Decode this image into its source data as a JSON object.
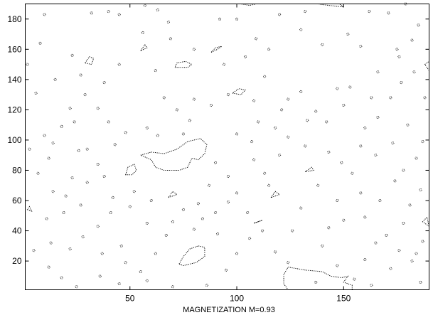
{
  "chart_data": {
    "type": "contour",
    "title": "",
    "xlabel": "MAGNETIZATION M=0.93",
    "ylabel": "",
    "xlim": [
      1,
      190
    ],
    "ylim": [
      1,
      190
    ],
    "x_ticks": [
      50,
      100,
      150
    ],
    "y_ticks": [
      20,
      40,
      60,
      80,
      100,
      120,
      140,
      160,
      180
    ],
    "grid": false,
    "legend": "none",
    "line_color": "#000000",
    "line_style": "dotted",
    "domains": [
      {
        "kind": "island",
        "points": [
          [
            55,
            90
          ],
          [
            60,
            92
          ],
          [
            66,
            91
          ],
          [
            72,
            94
          ],
          [
            77,
            99
          ],
          [
            83,
            101
          ],
          [
            86,
            97
          ],
          [
            85,
            91
          ],
          [
            82,
            87
          ],
          [
            79,
            88
          ],
          [
            77,
            82
          ],
          [
            73,
            80
          ],
          [
            66,
            80
          ],
          [
            62,
            82
          ],
          [
            60,
            87
          ]
        ]
      },
      {
        "kind": "island",
        "points": [
          [
            124,
            16
          ],
          [
            132,
            14
          ],
          [
            140,
            13
          ],
          [
            144,
            10
          ],
          [
            149,
            9
          ],
          [
            152,
            10
          ],
          [
            150,
            6
          ],
          [
            154,
            4
          ],
          [
            154,
            1
          ],
          [
            124,
            1
          ],
          [
            122,
            5
          ],
          [
            122,
            11
          ]
        ]
      },
      {
        "kind": "island",
        "points": [
          [
            73,
            18
          ],
          [
            75,
            23
          ],
          [
            78,
            28
          ],
          [
            82,
            30
          ],
          [
            85,
            29
          ],
          [
            85,
            23
          ],
          [
            81,
            19
          ],
          [
            75,
            17
          ]
        ]
      },
      {
        "kind": "island",
        "points": [
          [
            71,
            148
          ],
          [
            77,
            148
          ],
          [
            79,
            150
          ],
          [
            76,
            152
          ],
          [
            72,
            151
          ]
        ]
      },
      {
        "kind": "island",
        "points": [
          [
            48,
            77
          ],
          [
            49,
            82
          ],
          [
            52,
            84
          ],
          [
            53,
            80
          ],
          [
            51,
            77
          ]
        ]
      },
      {
        "kind": "island",
        "points": [
          [
            138,
            190
          ],
          [
            143,
            189
          ],
          [
            150,
            188
          ],
          [
            148,
            190
          ]
        ]
      },
      {
        "kind": "island",
        "points": [
          [
            102,
            190
          ],
          [
            106,
            189
          ],
          [
            109,
            190
          ]
        ]
      },
      {
        "kind": "island",
        "points": [
          [
            88,
            158
          ],
          [
            91,
            160
          ],
          [
            93,
            162
          ],
          [
            90,
            161
          ]
        ]
      },
      {
        "kind": "island",
        "points": [
          [
            98,
            131
          ],
          [
            102,
            130
          ],
          [
            104,
            133
          ],
          [
            101,
            134
          ]
        ]
      },
      {
        "kind": "island",
        "points": [
          [
            29,
            151
          ],
          [
            31,
            155
          ],
          [
            33,
            154
          ],
          [
            32,
            150
          ]
        ]
      },
      {
        "kind": "island",
        "points": [
          [
            55,
            159
          ],
          [
            57,
            163
          ],
          [
            58,
            161
          ]
        ]
      },
      {
        "kind": "island",
        "points": [
          [
            132,
            79
          ],
          [
            135,
            82
          ],
          [
            136,
            80
          ]
        ]
      },
      {
        "kind": "island",
        "points": [
          [
            68,
            62
          ],
          [
            72,
            64
          ],
          [
            70,
            66
          ]
        ]
      },
      {
        "kind": "island",
        "points": [
          [
            116,
            62
          ],
          [
            118,
            66
          ],
          [
            120,
            64
          ]
        ]
      },
      {
        "kind": "island",
        "points": [
          [
            108,
            45
          ],
          [
            110,
            46
          ],
          [
            112,
            47
          ]
        ]
      },
      {
        "kind": "island",
        "points": [
          [
            190,
            43
          ],
          [
            187,
            46
          ],
          [
            189,
            49
          ]
        ]
      },
      {
        "kind": "island",
        "points": [
          [
            190,
            146
          ],
          [
            188,
            150
          ],
          [
            190,
            152
          ]
        ]
      },
      {
        "kind": "island",
        "points": [
          [
            2,
            54
          ],
          [
            4,
            53
          ],
          [
            3,
            56
          ]
        ]
      }
    ],
    "spins": [
      [
        18,
        109
      ],
      [
        10,
        103
      ],
      [
        3,
        94
      ],
      [
        22,
        121
      ],
      [
        6,
        131
      ],
      [
        2,
        150
      ],
      [
        8,
        164
      ],
      [
        10,
        183
      ],
      [
        23,
        156
      ],
      [
        27,
        143
      ],
      [
        32,
        184
      ],
      [
        40,
        185
      ],
      [
        45,
        183
      ],
      [
        57,
        189
      ],
      [
        63,
        186
      ],
      [
        68,
        178
      ],
      [
        69,
        167
      ],
      [
        56,
        171
      ],
      [
        62,
        146
      ],
      [
        72,
        120
      ],
      [
        78,
        113
      ],
      [
        75,
        104
      ],
      [
        63,
        103
      ],
      [
        58,
        108
      ],
      [
        66,
        128
      ],
      [
        80,
        127
      ],
      [
        88,
        123
      ],
      [
        96,
        130
      ],
      [
        94,
        150
      ],
      [
        92,
        180
      ],
      [
        100,
        180
      ],
      [
        109,
        167
      ],
      [
        113,
        142
      ],
      [
        108,
        126
      ],
      [
        110,
        112
      ],
      [
        118,
        108
      ],
      [
        121,
        120
      ],
      [
        124,
        127
      ],
      [
        130,
        132
      ],
      [
        137,
        119
      ],
      [
        142,
        112
      ],
      [
        147,
        134
      ],
      [
        153,
        135
      ],
      [
        158,
        162
      ],
      [
        152,
        170
      ],
      [
        162,
        185
      ],
      [
        171,
        184
      ],
      [
        179,
        190
      ],
      [
        185,
        176
      ],
      [
        182,
        166
      ],
      [
        176,
        155
      ],
      [
        166,
        145
      ],
      [
        172,
        128
      ],
      [
        180,
        110
      ],
      [
        187,
        99
      ],
      [
        184,
        88
      ],
      [
        178,
        80
      ],
      [
        174,
        73
      ],
      [
        186,
        67
      ],
      [
        181,
        57
      ],
      [
        178,
        45
      ],
      [
        170,
        37
      ],
      [
        165,
        32
      ],
      [
        176,
        27
      ],
      [
        182,
        20
      ],
      [
        172,
        15
      ],
      [
        160,
        21
      ],
      [
        163,
        4
      ],
      [
        155,
        8
      ],
      [
        147,
        17
      ],
      [
        137,
        6
      ],
      [
        124,
        19
      ],
      [
        118,
        26
      ],
      [
        112,
        40
      ],
      [
        105,
        52
      ],
      [
        96,
        59
      ],
      [
        90,
        52
      ],
      [
        82,
        58
      ],
      [
        87,
        70
      ],
      [
        96,
        76
      ],
      [
        90,
        85
      ],
      [
        108,
        87
      ],
      [
        113,
        78
      ],
      [
        120,
        90
      ],
      [
        132,
        96
      ],
      [
        143,
        92
      ],
      [
        149,
        85
      ],
      [
        154,
        78
      ],
      [
        158,
        65
      ],
      [
        147,
        60
      ],
      [
        138,
        70
      ],
      [
        130,
        55
      ],
      [
        126,
        40
      ],
      [
        140,
        30
      ],
      [
        143,
        42
      ],
      [
        150,
        47
      ],
      [
        160,
        49
      ],
      [
        167,
        60
      ],
      [
        165,
        90
      ],
      [
        173,
        98
      ],
      [
        160,
        108
      ],
      [
        158,
        96
      ],
      [
        166,
        115
      ],
      [
        188,
        128
      ],
      [
        187,
        33
      ],
      [
        184,
        25
      ],
      [
        186,
        6
      ],
      [
        60,
        60
      ],
      [
        52,
        66
      ],
      [
        41,
        52
      ],
      [
        35,
        43
      ],
      [
        28,
        36
      ],
      [
        22,
        28
      ],
      [
        13,
        32
      ],
      [
        5,
        27
      ],
      [
        11,
        48
      ],
      [
        19,
        52
      ],
      [
        14,
        66
      ],
      [
        23,
        75
      ],
      [
        30,
        72
      ],
      [
        38,
        76
      ],
      [
        30,
        94
      ],
      [
        35,
        84
      ],
      [
        43,
        97
      ],
      [
        48,
        105
      ],
      [
        40,
        112
      ],
      [
        35,
        121
      ],
      [
        29,
        130
      ],
      [
        24,
        112
      ],
      [
        14,
        98
      ],
      [
        12,
        88
      ],
      [
        7,
        78
      ],
      [
        20,
        63
      ],
      [
        27,
        57
      ],
      [
        46,
        30
      ],
      [
        37,
        25
      ],
      [
        48,
        19
      ],
      [
        55,
        13
      ],
      [
        62,
        25
      ],
      [
        67,
        37
      ],
      [
        70,
        46
      ],
      [
        58,
        45
      ],
      [
        50,
        56
      ],
      [
        42,
        62
      ],
      [
        12,
        16
      ],
      [
        18,
        9
      ],
      [
        25,
        3
      ],
      [
        36,
        10
      ],
      [
        45,
        5
      ],
      [
        58,
        7
      ],
      [
        70,
        3
      ],
      [
        86,
        4
      ],
      [
        95,
        14
      ],
      [
        100,
        25
      ],
      [
        106,
        35
      ],
      [
        91,
        38
      ],
      [
        80,
        41
      ],
      [
        84,
        48
      ],
      [
        75,
        54
      ],
      [
        100,
        65
      ],
      [
        115,
        70
      ],
      [
        107,
        99
      ],
      [
        100,
        104
      ],
      [
        124,
        102
      ],
      [
        133,
        113
      ],
      [
        150,
        123
      ],
      [
        163,
        128
      ],
      [
        177,
        138
      ],
      [
        183,
        145
      ],
      [
        175,
        160
      ],
      [
        140,
        163
      ],
      [
        130,
        173
      ],
      [
        120,
        183
      ],
      [
        132,
        185
      ],
      [
        115,
        160
      ],
      [
        104,
        155
      ],
      [
        80,
        160
      ],
      [
        45,
        150
      ],
      [
        38,
        138
      ],
      [
        15,
        140
      ],
      [
        26,
        93
      ]
    ]
  }
}
